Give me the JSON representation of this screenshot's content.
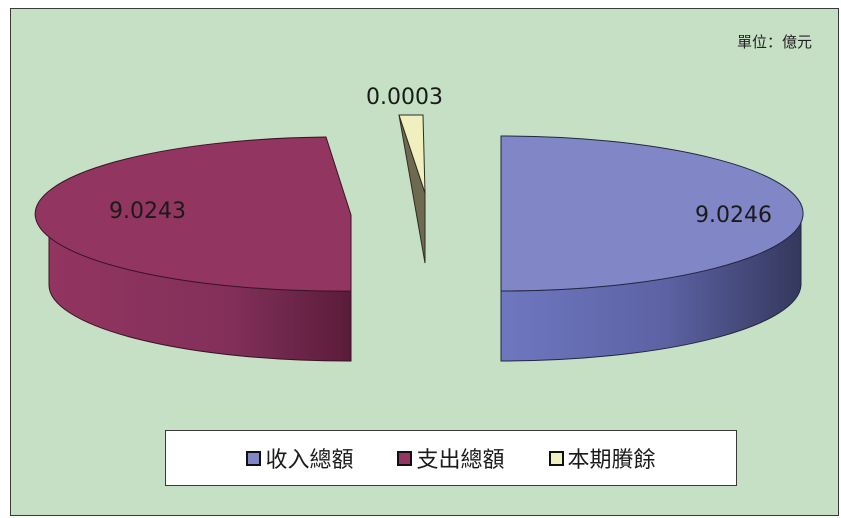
{
  "chart_data": {
    "type": "pie",
    "unit": "單位：億元",
    "slices": [
      {
        "name": "收入總額",
        "value": 9.0246,
        "label": "9.0246",
        "color": "#8086c6",
        "side_color": "#4a4f84"
      },
      {
        "name": "支出總額",
        "value": 9.0243,
        "label": "9.0243",
        "color": "#923560",
        "side_color": "#6e2548"
      },
      {
        "name": "本期賸餘",
        "value": 0.0003,
        "label": "0.0003",
        "color": "#efefc0",
        "side_color": "#6e6a52"
      }
    ],
    "legend": [
      "收入總額",
      "支出總額",
      "本期賸餘"
    ],
    "legend_position": "bottom",
    "exploded": true,
    "three_d": true
  }
}
